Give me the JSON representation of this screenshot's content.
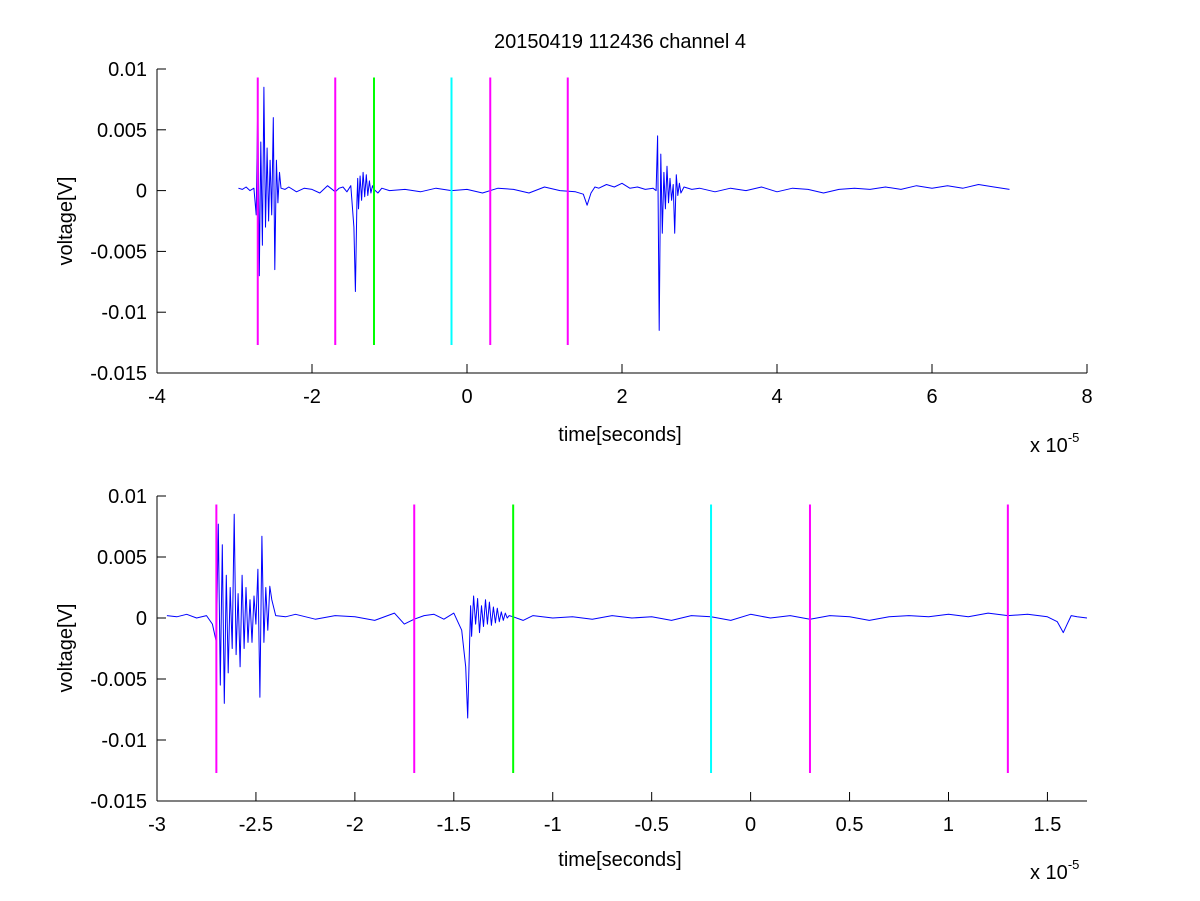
{
  "colors": {
    "signal": "#0000ff",
    "marker_magenta": "#ff00ff",
    "marker_green": "#00ff00",
    "marker_cyan": "#00ffff",
    "axes": "#000000",
    "background": "#ffffff"
  },
  "chart_data": [
    {
      "type": "line",
      "title": "20150419 112436 channel 4",
      "xlabel": "time[seconds]",
      "ylabel": "voltage[V]",
      "x_scale_label": "x 10",
      "x_scale_exponent": "-5",
      "xlim": [
        -4,
        8
      ],
      "ylim": [
        -0.015,
        0.01
      ],
      "x_ticks": [
        -4,
        -2,
        0,
        2,
        4,
        6,
        8
      ],
      "x_tick_labels": [
        "-4",
        "-2",
        "0",
        "2",
        "4",
        "6",
        "8"
      ],
      "y_ticks": [
        0.01,
        0.005,
        0,
        -0.005,
        -0.01,
        -0.015
      ],
      "y_tick_labels": [
        "0.01",
        "0.005",
        "0",
        "-0.005",
        "-0.01",
        "-0.015"
      ],
      "grid": false,
      "series": [
        {
          "color": "#0000ff",
          "x": [
            -2.95,
            -2.9,
            -2.85,
            -2.8,
            -2.75,
            -2.72,
            -2.7,
            -2.68,
            -2.66,
            -2.64,
            -2.62,
            -2.6,
            -2.58,
            -2.56,
            -2.54,
            -2.52,
            -2.5,
            -2.48,
            -2.46,
            -2.44,
            -2.42,
            -2.4,
            -2.35,
            -2.3,
            -2.2,
            -2.1,
            -2.0,
            -1.9,
            -1.8,
            -1.7,
            -1.65,
            -1.6,
            -1.55,
            -1.5,
            -1.46,
            -1.44,
            -1.42,
            -1.41,
            -1.4,
            -1.38,
            -1.36,
            -1.34,
            -1.32,
            -1.3,
            -1.28,
            -1.26,
            -1.24,
            -1.22,
            -1.2,
            -1.15,
            -1.1,
            -1.0,
            -0.8,
            -0.6,
            -0.4,
            -0.2,
            0.0,
            0.2,
            0.4,
            0.6,
            0.8,
            1.0,
            1.2,
            1.4,
            1.5,
            1.55,
            1.6,
            1.65,
            1.7,
            1.8,
            1.9,
            2.0,
            2.1,
            2.2,
            2.3,
            2.4,
            2.44,
            2.46,
            2.48,
            2.5,
            2.52,
            2.54,
            2.56,
            2.58,
            2.6,
            2.62,
            2.64,
            2.66,
            2.68,
            2.7,
            2.72,
            2.74,
            2.76,
            2.8,
            2.9,
            3.0,
            3.2,
            3.4,
            3.6,
            3.8,
            4.0,
            4.2,
            4.4,
            4.6,
            4.8,
            5.0,
            5.2,
            5.4,
            5.6,
            5.8,
            6.0,
            6.2,
            6.4,
            6.6,
            6.8,
            7.0
          ],
          "y": [
            0.0002,
            0.0001,
            0.0003,
            0.0,
            0.0002,
            -0.002,
            0.0075,
            -0.007,
            0.004,
            -0.0045,
            0.0085,
            -0.003,
            0.0035,
            -0.0025,
            0.0025,
            -0.002,
            0.006,
            -0.0065,
            0.0025,
            -0.001,
            0.0015,
            0.0002,
            0.0001,
            0.0003,
            -0.0001,
            0.0002,
            0.0001,
            -0.0002,
            0.0004,
            -0.0001,
            0.0002,
            0.0003,
            -0.0001,
            0.0004,
            -0.003,
            -0.0083,
            -0.001,
            0.001,
            -0.0015,
            0.0012,
            -0.0008,
            0.0015,
            -0.0005,
            0.0013,
            -0.0004,
            0.0008,
            -0.0002,
            0.0004,
            0.0001,
            -0.0002,
            0.0002,
            0.0,
            0.0001,
            -0.0001,
            0.0002,
            0.0,
            0.0001,
            -0.0002,
            0.0002,
            0.0001,
            -0.0002,
            0.0003,
            0.0,
            -0.0001,
            -0.0003,
            -0.0012,
            -0.0002,
            0.0003,
            0.0002,
            0.0005,
            0.0003,
            0.0006,
            0.0002,
            0.0003,
            0.0001,
            0.0002,
            0.0,
            0.0045,
            -0.0115,
            0.003,
            -0.0035,
            0.0015,
            -0.0015,
            0.002,
            -0.001,
            0.001,
            -0.0008,
            0.0005,
            -0.0035,
            0.0013,
            -0.0004,
            0.0006,
            -0.0002,
            0.0003,
            0.0001,
            0.0002,
            -0.0001,
            0.0002,
            0.0,
            0.0003,
            -0.0001,
            0.0002,
            0.0001,
            -0.0002,
            0.0001,
            0.0002,
            0.0001,
            0.0003,
            0.0001,
            0.0004,
            0.0002,
            0.0004,
            0.0002,
            0.0005,
            0.0003,
            0.0001
          ]
        }
      ],
      "markers": [
        {
          "x": -2.7,
          "color": "#ff00ff"
        },
        {
          "x": -1.7,
          "color": "#ff00ff"
        },
        {
          "x": -1.2,
          "color": "#00ff00"
        },
        {
          "x": -0.2,
          "color": "#00ffff"
        },
        {
          "x": 0.3,
          "color": "#ff00ff"
        },
        {
          "x": 1.3,
          "color": "#ff00ff"
        }
      ],
      "marker_y_range": [
        -0.0127,
        0.0093
      ]
    },
    {
      "type": "line",
      "title": "",
      "xlabel": "time[seconds]",
      "ylabel": "voltage[V]",
      "x_scale_label": "x 10",
      "x_scale_exponent": "-5",
      "xlim": [
        -3.0,
        1.7
      ],
      "ylim": [
        -0.015,
        0.01
      ],
      "x_ticks": [
        -3,
        -2.5,
        -2,
        -1.5,
        -1,
        -0.5,
        0,
        0.5,
        1,
        1.5
      ],
      "x_tick_labels": [
        "-3",
        "-2.5",
        "-2",
        "-1.5",
        "-1",
        "-0.5",
        "0",
        "0.5",
        "1",
        "1.5"
      ],
      "y_ticks": [
        0.01,
        0.005,
        0,
        -0.005,
        -0.01,
        -0.015
      ],
      "y_tick_labels": [
        "0.01",
        "0.005",
        "0",
        "-0.005",
        "-0.01",
        "-0.015"
      ],
      "grid": false,
      "series": [
        {
          "color": "#0000ff",
          "x": [
            -2.95,
            -2.9,
            -2.85,
            -2.8,
            -2.75,
            -2.72,
            -2.7,
            -2.69,
            -2.68,
            -2.67,
            -2.66,
            -2.65,
            -2.64,
            -2.63,
            -2.62,
            -2.61,
            -2.6,
            -2.59,
            -2.58,
            -2.57,
            -2.56,
            -2.55,
            -2.54,
            -2.53,
            -2.52,
            -2.51,
            -2.5,
            -2.49,
            -2.48,
            -2.47,
            -2.46,
            -2.45,
            -2.44,
            -2.43,
            -2.42,
            -2.4,
            -2.35,
            -2.3,
            -2.2,
            -2.1,
            -2.0,
            -1.9,
            -1.8,
            -1.75,
            -1.7,
            -1.65,
            -1.6,
            -1.55,
            -1.5,
            -1.46,
            -1.44,
            -1.43,
            -1.42,
            -1.415,
            -1.41,
            -1.4,
            -1.39,
            -1.38,
            -1.37,
            -1.36,
            -1.35,
            -1.34,
            -1.33,
            -1.32,
            -1.31,
            -1.3,
            -1.29,
            -1.28,
            -1.27,
            -1.26,
            -1.25,
            -1.24,
            -1.23,
            -1.22,
            -1.2,
            -1.15,
            -1.1,
            -1.0,
            -0.9,
            -0.8,
            -0.7,
            -0.6,
            -0.5,
            -0.4,
            -0.3,
            -0.2,
            -0.1,
            0.0,
            0.1,
            0.2,
            0.3,
            0.4,
            0.5,
            0.6,
            0.7,
            0.8,
            0.9,
            1.0,
            1.1,
            1.2,
            1.3,
            1.4,
            1.5,
            1.55,
            1.58,
            1.6,
            1.62,
            1.65,
            1.7
          ],
          "y": [
            0.0002,
            0.0001,
            0.0003,
            0.0,
            0.0002,
            -0.0005,
            -0.002,
            0.0077,
            -0.0055,
            0.006,
            -0.007,
            0.0035,
            -0.0045,
            0.0025,
            -0.0025,
            0.0085,
            -0.003,
            0.002,
            -0.004,
            0.0035,
            -0.0025,
            0.0025,
            -0.002,
            0.0015,
            -0.002,
            0.0018,
            -0.0005,
            0.004,
            -0.0065,
            0.0067,
            -0.002,
            0.0025,
            -0.001,
            0.0026,
            0.0015,
            0.0002,
            0.0001,
            0.0003,
            -0.0001,
            0.0002,
            0.0001,
            -0.0002,
            0.0004,
            -0.0005,
            -0.0001,
            0.0002,
            0.0003,
            -0.0001,
            0.0004,
            -0.001,
            -0.004,
            -0.0082,
            -0.002,
            0.001,
            -0.0015,
            0.0018,
            -0.0005,
            0.0016,
            -0.0012,
            0.001,
            -0.0007,
            0.0015,
            -0.0005,
            0.0013,
            -0.0006,
            0.0009,
            -0.0004,
            0.0008,
            -0.0003,
            0.0005,
            -0.0002,
            0.0004,
            0.0,
            0.0002,
            0.0001,
            -0.0002,
            0.0002,
            0.0,
            0.0001,
            -0.0001,
            0.0002,
            0.0,
            0.0001,
            -0.0002,
            0.0002,
            0.0001,
            -0.0002,
            0.0003,
            0.0,
            0.0002,
            -0.0001,
            0.0002,
            0.0001,
            -0.0002,
            0.0001,
            0.0002,
            0.0001,
            0.0003,
            0.0001,
            0.0004,
            0.0002,
            0.0003,
            0.0001,
            -0.0003,
            -0.0012,
            -0.0005,
            0.0002,
            0.0001,
            0.0
          ]
        }
      ],
      "markers": [
        {
          "x": -2.7,
          "color": "#ff00ff"
        },
        {
          "x": -1.7,
          "color": "#ff00ff"
        },
        {
          "x": -1.2,
          "color": "#00ff00"
        },
        {
          "x": -0.2,
          "color": "#00ffff"
        },
        {
          "x": 0.3,
          "color": "#ff00ff"
        },
        {
          "x": 1.3,
          "color": "#ff00ff"
        }
      ],
      "marker_y_range": [
        -0.0127,
        0.0093
      ]
    }
  ]
}
